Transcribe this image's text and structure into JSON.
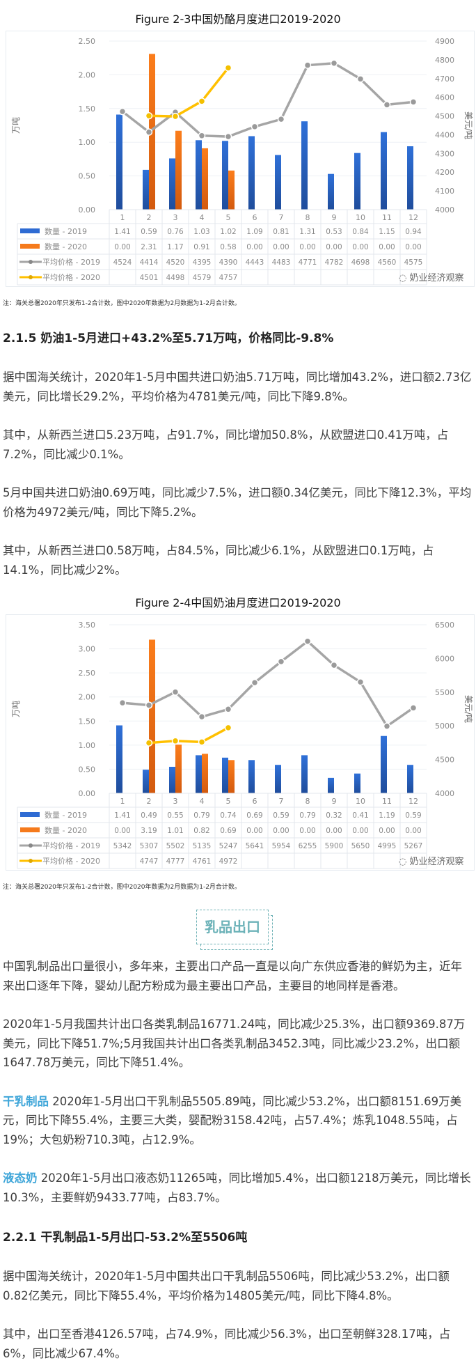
{
  "chart_data": [
    {
      "type": "bar",
      "title": "Figure 2-3中国奶酪月度进口2019-2020",
      "ylabel": "万吨",
      "y2label": "美元/吨",
      "categories": [
        "1",
        "2",
        "3",
        "4",
        "5",
        "6",
        "7",
        "8",
        "9",
        "10",
        "11",
        "12"
      ],
      "ylim": [
        0,
        2.5
      ],
      "yticks": [
        "0.00",
        "0.50",
        "1.00",
        "1.50",
        "2.00",
        "2.50"
      ],
      "y2lim": [
        4000,
        4900
      ],
      "y2ticks": [
        "4000",
        "4100",
        "4200",
        "4300",
        "4400",
        "4500",
        "4600",
        "4700",
        "4800",
        "4900"
      ],
      "series": [
        {
          "name": "数量 - 2019",
          "kind": "bar",
          "axis": "left",
          "color": "#2e6bd3",
          "values": [
            1.41,
            0.59,
            0.76,
            1.03,
            1.02,
            1.09,
            0.81,
            1.31,
            0.53,
            0.84,
            1.15,
            0.94
          ],
          "labels": [
            "1.41",
            "0.59",
            "0.76",
            "1.03",
            "1.02",
            "1.09",
            "0.81",
            "1.31",
            "0.53",
            "0.84",
            "1.15",
            "0.94"
          ]
        },
        {
          "name": "数量 - 2020",
          "kind": "bar",
          "axis": "left",
          "color": "#f57a1c",
          "values": [
            0,
            2.31,
            1.17,
            0.91,
            0.58,
            0,
            0,
            0,
            0,
            0,
            0,
            0
          ],
          "labels": [
            "0.00",
            "2.31",
            "1.17",
            "0.91",
            "0.58",
            "0.00",
            "0.00",
            "0.00",
            "0.00",
            "0.00",
            "0.00",
            "0.00"
          ]
        },
        {
          "name": "平均价格 - 2019",
          "kind": "line",
          "axis": "right",
          "color": "#a5a5a5",
          "values": [
            4524,
            4414,
            4520,
            4395,
            4390,
            4443,
            4483,
            4771,
            4782,
            4698,
            4560,
            4575
          ],
          "labels": [
            "4524",
            "4414",
            "4520",
            "4395",
            "4390",
            "4443",
            "4483",
            "4771",
            "4782",
            "4698",
            "4560",
            "4575"
          ]
        },
        {
          "name": "平均价格 - 2020",
          "kind": "line",
          "axis": "right",
          "color": "#ffc000",
          "values": [
            null,
            4501,
            4498,
            4579,
            4757,
            null,
            null,
            null,
            null,
            null,
            null,
            null
          ],
          "labels": [
            "",
            "4501",
            "4498",
            "4579",
            "4757",
            "",
            "",
            "",
            "",
            "",
            "",
            ""
          ]
        }
      ],
      "watermark": "奶业经济观察",
      "legend": "table-left"
    },
    {
      "type": "bar",
      "title": "Figure 2-4中国奶油月度进口2019-2020",
      "ylabel": "万吨",
      "y2label": "美元/吨",
      "categories": [
        "1",
        "2",
        "3",
        "4",
        "5",
        "6",
        "7",
        "8",
        "9",
        "10",
        "11",
        "12"
      ],
      "ylim": [
        0,
        3.5
      ],
      "yticks": [
        "0.00",
        "0.50",
        "1.00",
        "1.50",
        "2.00",
        "2.50",
        "3.00",
        "3.50"
      ],
      "y2lim": [
        4000,
        6500
      ],
      "y2ticks": [
        "4000",
        "4500",
        "5000",
        "5500",
        "6000",
        "6500"
      ],
      "series": [
        {
          "name": "数量 - 2019",
          "kind": "bar",
          "axis": "left",
          "color": "#2e6bd3",
          "values": [
            1.41,
            0.49,
            0.55,
            0.79,
            0.74,
            0.69,
            0.59,
            0.79,
            0.32,
            0.41,
            1.19,
            0.59
          ],
          "labels": [
            "1.41",
            "0.49",
            "0.55",
            "0.79",
            "0.74",
            "0.69",
            "0.59",
            "0.79",
            "0.32",
            "0.41",
            "1.19",
            "0.59"
          ]
        },
        {
          "name": "数量 - 2020",
          "kind": "bar",
          "axis": "left",
          "color": "#f57a1c",
          "values": [
            0,
            3.19,
            1.01,
            0.82,
            0.69,
            0,
            0,
            0,
            0,
            0,
            0,
            0
          ],
          "labels": [
            "0.00",
            "3.19",
            "1.01",
            "0.82",
            "0.69",
            "0.00",
            "0.00",
            "0.00",
            "0.00",
            "0.00",
            "0.00",
            "0.00"
          ]
        },
        {
          "name": "平均价格 - 2019",
          "kind": "line",
          "axis": "right",
          "color": "#a5a5a5",
          "values": [
            5342,
            5307,
            5502,
            5135,
            5247,
            5641,
            5954,
            6255,
            5900,
            5650,
            4995,
            5267
          ],
          "labels": [
            "5342",
            "5307",
            "5502",
            "5135",
            "5247",
            "5641",
            "5954",
            "6255",
            "5900",
            "5650",
            "4995",
            "5267"
          ]
        },
        {
          "name": "平均价格 - 2020",
          "kind": "line",
          "axis": "right",
          "color": "#ffc000",
          "values": [
            null,
            4747,
            4777,
            4761,
            4972,
            null,
            null,
            null,
            null,
            null,
            null,
            null
          ],
          "labels": [
            "",
            "4747",
            "4777",
            "4761",
            "4972",
            "",
            "",
            "",
            "",
            "",
            "",
            ""
          ]
        }
      ],
      "watermark": "奶业经济观察",
      "legend": "table-left"
    }
  ],
  "notes": {
    "chart1": "注：海关总署2020年只发布1-2合计数，图中2020年数据为2月数据为1-2月合计数。",
    "chart2": "注：海关总署2020年只发布1-2合计数，图中2020年数据为2月数据为1-2月合计数。"
  },
  "section_215": {
    "heading": "2.1.5  奶油1-5月进口+43.2%至5.71万吨，价格同比-9.8%",
    "p1": "据中国海关统计，2020年1-5月中国共进口奶油5.71万吨，同比增加43.2%，进口额2.73亿美元，同比增长29.2%，平均价格为4781美元/吨，同比下降9.8%。",
    "p2": "其中，从新西兰进口5.23万吨，占91.7%，同比增加50.8%，从欧盟进口0.41万吨，占7.2%，同比减少0.1%。",
    "p3": "5月中国共进口奶油0.69万吨，同比减少7.5%，进口额0.34亿美元，同比下降12.3%，平均价格为4972美元/吨，同比下降5.2%。",
    "p4": "其中，从新西兰进口0.58万吨，占84.5%，同比减少6.1%，从欧盟进口0.1万吨，占14.1%，同比减少2%。"
  },
  "section_export": {
    "title": "乳品出口",
    "p1": "中国乳制品出口量很小，多年来，主要出口产品一直是以向广东供应香港的鲜奶为主，近年来出口逐年下降，婴幼儿配方粉成为最主要出口产品，主要目的地同样是香港。",
    "p2": "2020年1-5月我国共计出口各类乳制品16771.24吨，同比减少25.3%，出口额9369.87万美元，同比下降51.7%;5月我国共计出口各类乳制品3452.3吨，同比减少23.2%，出口额1647.78万美元，同比下降51.4%。",
    "dry_kw": "干乳制品",
    "dry_text": "  2020年1-5月出口干乳制品5505.89吨，同比减少53.2%，出口额8151.69万美元，同比下降55.4%，主要三大类，婴配粉3158.42吨，占57.4%；炼乳1048.55吨，占19%；大包奶粉710.3吨，占12.9%。",
    "liquid_kw": "液态奶",
    "liquid_text": "   2020年1-5月出口液态奶11265吨，同比增加5.4%，出口额1218万美元，同比增长10.3%，主要鲜奶9433.77吨，占83.7%。"
  },
  "section_221": {
    "heading": "2.2.1  干乳制品1-5月出口-53.2%至5506吨",
    "p1": "据中国海关统计，2020年1-5月中国共出口干乳制品5506吨，同比减少53.2%，出口额0.82亿美元，同比下降55.4%，平均价格为14805美元/吨，同比下降4.8%。",
    "p2": "其中，出口至香港4126.57吨，占74.9%，同比减少56.3%，出口至朝鲜328.17吨，占6%，同比减少67.4%。"
  }
}
